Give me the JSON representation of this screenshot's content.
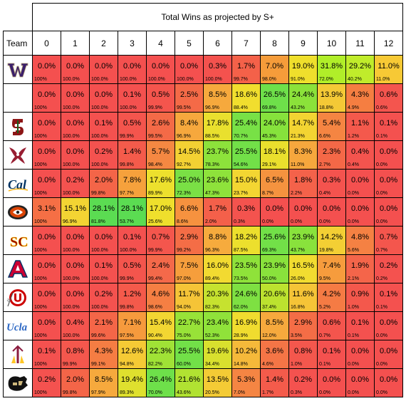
{
  "title": "Total Wins as projected by S+",
  "team_header": "Team",
  "win_columns": [
    "0",
    "1",
    "2",
    "3",
    "4",
    "5",
    "6",
    "7",
    "8",
    "9",
    "10",
    "11",
    "12"
  ],
  "rows": [
    {
      "team": "Washington",
      "logo": "washington-logo",
      "values": [
        "0.0%",
        "0.0%",
        "0.0%",
        "0.0%",
        "0.0%",
        "0.0%",
        "0.3%",
        "1.7%",
        "7.0%",
        "19.0%",
        "31.8%",
        "29.2%",
        "11.0%"
      ],
      "cum": [
        "100%",
        "100.0%",
        "100.0%",
        "100.0%",
        "100.0%",
        "100.0%",
        "100.0%",
        "99.7%",
        "98.0%",
        "91.0%",
        "72.0%",
        "40.2%",
        "11.0%"
      ],
      "colors": [
        "#f4504f",
        "#f4504f",
        "#f4504f",
        "#f4504f",
        "#f4504f",
        "#f4504f",
        "#f4524e",
        "#f46149",
        "#f59c3a",
        "#efdf2c",
        "#b0ee29",
        "#c0ec2b",
        "#f7c935"
      ]
    },
    {
      "team": "",
      "logo": "",
      "values": [
        "0.0%",
        "0.0%",
        "0.0%",
        "0.1%",
        "0.5%",
        "2.5%",
        "8.5%",
        "18.6%",
        "26.5%",
        "24.4%",
        "13.9%",
        "4.3%",
        "0.6%"
      ],
      "cum": [
        "100%",
        "100.0%",
        "100.0%",
        "100.0%",
        "99.9%",
        "99.5%",
        "96.9%",
        "88.4%",
        "69.8%",
        "43.2%",
        "18.8%",
        "4.9%",
        "0.6%"
      ],
      "colors": [
        "#f4504f",
        "#f4504f",
        "#f4504f",
        "#f4514f",
        "#f4554d",
        "#f46a47",
        "#f6a93d",
        "#f1de2e",
        "#6ee04a",
        "#8be23a",
        "#f4c936",
        "#f57e41",
        "#f4554e"
      ]
    },
    {
      "team": "Stanford",
      "logo": "stanford-logo",
      "values": [
        "0.0%",
        "0.0%",
        "0.1%",
        "0.5%",
        "2.6%",
        "8.4%",
        "17.8%",
        "25.4%",
        "24.0%",
        "14.7%",
        "5.4%",
        "1.1%",
        "0.1%"
      ],
      "cum": [
        "100%",
        "100.0%",
        "100.0%",
        "99.9%",
        "99.5%",
        "96.9%",
        "88.5%",
        "70.7%",
        "45.3%",
        "21.3%",
        "6.6%",
        "1.2%",
        "0.1%"
      ],
      "colors": [
        "#f4504f",
        "#f4504f",
        "#f4514f",
        "#f4554d",
        "#f46a47",
        "#f6a83d",
        "#e9e02e",
        "#78e146",
        "#86e23c",
        "#f3d432",
        "#f58542",
        "#f4594c",
        "#f4514f"
      ]
    },
    {
      "team": "Washington State",
      "logo": "wsu-logo",
      "values": [
        "0.0%",
        "0.0%",
        "0.2%",
        "1.4%",
        "5.7%",
        "14.5%",
        "23.7%",
        "25.5%",
        "18.1%",
        "8.3%",
        "2.3%",
        "0.4%",
        "0.0%"
      ],
      "cum": [
        "100%",
        "100.0%",
        "100.0%",
        "99.8%",
        "98.4%",
        "92.7%",
        "78.3%",
        "54.6%",
        "29.1%",
        "11.0%",
        "2.7%",
        "0.4%",
        "0.0%"
      ],
      "colors": [
        "#f4504f",
        "#f4504f",
        "#f4524f",
        "#f45b4b",
        "#f58842",
        "#f3d133",
        "#8de23b",
        "#72e048",
        "#eadf2d",
        "#f6a73d",
        "#f46847",
        "#f4544e",
        "#f4504f"
      ]
    },
    {
      "team": "Cal",
      "logo": "cal-logo",
      "values": [
        "0.0%",
        "0.2%",
        "2.0%",
        "7.8%",
        "17.6%",
        "25.0%",
        "23.6%",
        "15.0%",
        "6.5%",
        "1.8%",
        "0.3%",
        "0.0%",
        "0.0%"
      ],
      "cum": [
        "100%",
        "100.0%",
        "99.8%",
        "97.7%",
        "89.9%",
        "72.3%",
        "47.3%",
        "23.7%",
        "8.7%",
        "2.2%",
        "0.4%",
        "0.0%",
        "0.0%"
      ],
      "colors": [
        "#f4504f",
        "#f4524f",
        "#f46548",
        "#f6a13c",
        "#ede02d",
        "#7ae045",
        "#8ee23b",
        "#f3d632",
        "#f5933f",
        "#f4624a",
        "#f4534e",
        "#f4504f",
        "#f4504f"
      ]
    },
    {
      "team": "Oregon State",
      "logo": "osu-logo",
      "values": [
        "3.1%",
        "15.1%",
        "28.1%",
        "28.1%",
        "17.0%",
        "6.6%",
        "1.7%",
        "0.3%",
        "0.0%",
        "0.0%",
        "0.0%",
        "0.0%",
        "0.0%"
      ],
      "cum": [
        "100%",
        "96.9%",
        "81.8%",
        "53.7%",
        "25.6%",
        "8.6%",
        "2.0%",
        "0.3%",
        "0.0%",
        "0.0%",
        "0.0%",
        "0.0%",
        "0.0%"
      ],
      "colors": [
        "#f56f45",
        "#f3d433",
        "#5bdc52",
        "#5bdc52",
        "#efdf2c",
        "#f6923f",
        "#f4604a",
        "#f4534e",
        "#f4504f",
        "#f4504f",
        "#f4504f",
        "#f4504f",
        "#f4504f"
      ]
    },
    {
      "team": "USC",
      "logo": "usc-logo",
      "values": [
        "0.0%",
        "0.0%",
        "0.0%",
        "0.1%",
        "0.7%",
        "2.9%",
        "8.8%",
        "18.2%",
        "25.6%",
        "23.9%",
        "14.2%",
        "4.8%",
        "0.7%"
      ],
      "cum": [
        "100%",
        "100.0%",
        "100.0%",
        "100.0%",
        "99.9%",
        "99.2%",
        "96.3%",
        "87.5%",
        "69.3%",
        "43.7%",
        "19.8%",
        "5.6%",
        "0.7%"
      ],
      "colors": [
        "#f4504f",
        "#f4504f",
        "#f4504f",
        "#f4514f",
        "#f4564d",
        "#f46d46",
        "#f6ab3d",
        "#ecdf2d",
        "#72e048",
        "#89e23c",
        "#f3cf34",
        "#f58143",
        "#f4564d"
      ]
    },
    {
      "team": "Arizona",
      "logo": "arizona-logo",
      "values": [
        "0.0%",
        "0.0%",
        "0.1%",
        "0.5%",
        "2.4%",
        "7.5%",
        "16.0%",
        "23.5%",
        "23.9%",
        "16.5%",
        "7.4%",
        "1.9%",
        "0.2%"
      ],
      "cum": [
        "100%",
        "100.0%",
        "100.0%",
        "99.9%",
        "99.4%",
        "97.0%",
        "89.4%",
        "73.5%",
        "50.0%",
        "26.0%",
        "9.5%",
        "2.1%",
        "0.2%"
      ],
      "colors": [
        "#f4504f",
        "#f4504f",
        "#f4514f",
        "#f4554d",
        "#f4694a",
        "#f69e3c",
        "#f2da31",
        "#8fe23a",
        "#89e23c",
        "#f2dc30",
        "#f69c3d",
        "#f4654a",
        "#f4524f"
      ]
    },
    {
      "team": "Utah",
      "logo": "utah-logo",
      "values": [
        "0.0%",
        "0.0%",
        "0.2%",
        "1.2%",
        "4.6%",
        "11.7%",
        "20.3%",
        "24.6%",
        "20.6%",
        "11.6%",
        "4.2%",
        "0.9%",
        "0.1%"
      ],
      "cum": [
        "100%",
        "100.0%",
        "100.0%",
        "99.8%",
        "98.6%",
        "94.0%",
        "82.3%",
        "62.0%",
        "37.4%",
        "16.8%",
        "5.2%",
        "1.0%",
        "0.1%"
      ],
      "colors": [
        "#f4504f",
        "#f4504f",
        "#f4524f",
        "#f45a4b",
        "#f57f43",
        "#f5c437",
        "#c6e22f",
        "#7ee042",
        "#bce22f",
        "#f5c437",
        "#f57b44",
        "#f4584c",
        "#f4514f"
      ]
    },
    {
      "team": "UCLA",
      "logo": "ucla-logo",
      "values": [
        "0.0%",
        "0.4%",
        "2.1%",
        "7.1%",
        "15.4%",
        "22.7%",
        "23.4%",
        "16.9%",
        "8.5%",
        "2.9%",
        "0.6%",
        "0.1%",
        "0.0%"
      ],
      "cum": [
        "100%",
        "100.0%",
        "99.6%",
        "97.5%",
        "90.4%",
        "75.0%",
        "52.3%",
        "28.9%",
        "12.0%",
        "3.5%",
        "0.7%",
        "0.1%",
        "0.0%"
      ],
      "colors": [
        "#f4504f",
        "#f4544e",
        "#f46648",
        "#f69a3d",
        "#f2d632",
        "#98e238",
        "#90e23a",
        "#f0dc2f",
        "#f6a93d",
        "#f46d46",
        "#f4554d",
        "#f4514f",
        "#f4504f"
      ]
    },
    {
      "team": "Arizona State",
      "logo": "asu-logo",
      "values": [
        "0.1%",
        "0.8%",
        "4.3%",
        "12.6%",
        "22.3%",
        "25.5%",
        "19.6%",
        "10.2%",
        "3.6%",
        "0.8%",
        "0.1%",
        "0.0%",
        "0.0%"
      ],
      "cum": [
        "100%",
        "99.9%",
        "99.1%",
        "94.8%",
        "82.2%",
        "60.0%",
        "34.4%",
        "14.8%",
        "4.6%",
        "1.0%",
        "0.1%",
        "0.0%",
        "0.0%"
      ],
      "colors": [
        "#f4514f",
        "#f4574d",
        "#f57d43",
        "#f5ca35",
        "#a0e236",
        "#72e048",
        "#d9e02e",
        "#f5b93a",
        "#f47546",
        "#f4574d",
        "#f4514f",
        "#f4504f",
        "#f4504f"
      ]
    },
    {
      "team": "Colorado",
      "logo": "colorado-logo",
      "values": [
        "0.2%",
        "2.0%",
        "8.5%",
        "19.4%",
        "26.4%",
        "21.6%",
        "13.5%",
        "5.3%",
        "1.4%",
        "0.2%",
        "0.0%",
        "0.0%",
        "0.0%"
      ],
      "cum": [
        "100%",
        "99.8%",
        "97.9%",
        "89.3%",
        "70.0%",
        "43.6%",
        "20.5%",
        "7.0%",
        "1.7%",
        "0.3%",
        "0.0%",
        "0.0%",
        "0.0%"
      ],
      "colors": [
        "#f4524f",
        "#f46548",
        "#f6a93d",
        "#dfe02e",
        "#6ee04a",
        "#b1e232",
        "#f4cb35",
        "#f58543",
        "#f45b4b",
        "#f4524f",
        "#f4504f",
        "#f4504f",
        "#f4504f"
      ]
    }
  ]
}
